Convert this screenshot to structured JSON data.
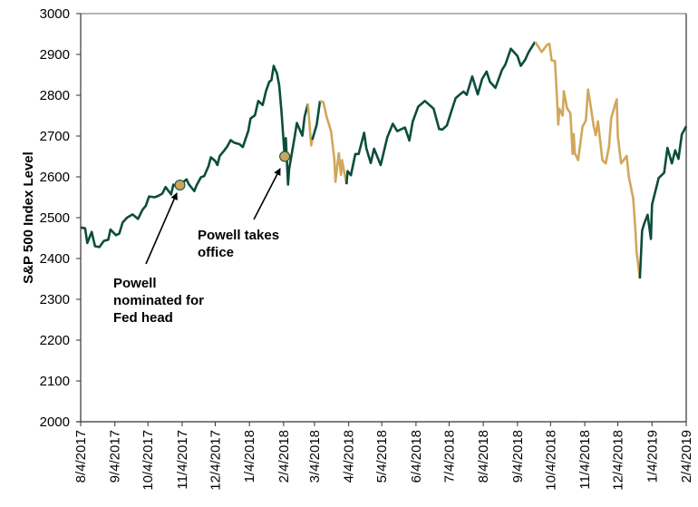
{
  "chart_data": {
    "type": "line",
    "title": "",
    "xlabel": "",
    "ylabel": "S&P 500 Index Level",
    "ylim": [
      2000,
      3000
    ],
    "xlim": [
      "2017-08-04",
      "2019-02-04"
    ],
    "y_ticks": [
      "2000",
      "2100",
      "2200",
      "2300",
      "2400",
      "2500",
      "2600",
      "2700",
      "2800",
      "2900",
      "3000"
    ],
    "x_ticks": [
      {
        "date": "2017-08-04",
        "label": "8/4/2017"
      },
      {
        "date": "2017-09-04",
        "label": "9/4/2017"
      },
      {
        "date": "2017-10-04",
        "label": "10/4/2017"
      },
      {
        "date": "2017-11-04",
        "label": "11/4/2017"
      },
      {
        "date": "2017-12-04",
        "label": "12/4/2017"
      },
      {
        "date": "2018-01-04",
        "label": "1/4/2018"
      },
      {
        "date": "2018-02-04",
        "label": "2/4/2018"
      },
      {
        "date": "2018-03-04",
        "label": "3/4/2018"
      },
      {
        "date": "2018-04-04",
        "label": "4/4/2018"
      },
      {
        "date": "2018-05-04",
        "label": "5/4/2018"
      },
      {
        "date": "2018-06-04",
        "label": "6/4/2018"
      },
      {
        "date": "2018-07-04",
        "label": "7/4/2018"
      },
      {
        "date": "2018-08-04",
        "label": "8/4/2018"
      },
      {
        "date": "2018-09-04",
        "label": "9/4/2018"
      },
      {
        "date": "2018-10-04",
        "label": "10/4/2018"
      },
      {
        "date": "2018-11-04",
        "label": "11/4/2018"
      },
      {
        "date": "2018-12-04",
        "label": "12/4/2018"
      },
      {
        "date": "2019-01-04",
        "label": "1/4/2019"
      },
      {
        "date": "2019-02-04",
        "label": "2/4/2019"
      }
    ],
    "grid": false,
    "colors": {
      "normal": "#0b4d3c",
      "correction": "#d1a75a",
      "marker": "#c9a45c"
    },
    "correction_periods": [
      [
        "2018-02-26",
        "2018-03-02"
      ],
      [
        "2018-03-09",
        "2018-04-02"
      ],
      [
        "2018-09-20",
        "2018-12-24"
      ]
    ],
    "series": [
      {
        "name": "S&P 500",
        "points": [
          [
            "2017-08-04",
            2476
          ],
          [
            "2017-08-08",
            2474
          ],
          [
            "2017-08-10",
            2438
          ],
          [
            "2017-08-14",
            2465
          ],
          [
            "2017-08-17",
            2430
          ],
          [
            "2017-08-21",
            2428
          ],
          [
            "2017-08-25",
            2443
          ],
          [
            "2017-08-29",
            2446
          ],
          [
            "2017-08-31",
            2471
          ],
          [
            "2017-09-05",
            2457
          ],
          [
            "2017-09-08",
            2461
          ],
          [
            "2017-09-11",
            2488
          ],
          [
            "2017-09-15",
            2500
          ],
          [
            "2017-09-20",
            2508
          ],
          [
            "2017-09-25",
            2497
          ],
          [
            "2017-09-29",
            2519
          ],
          [
            "2017-10-02",
            2529
          ],
          [
            "2017-10-05",
            2552
          ],
          [
            "2017-10-10",
            2550
          ],
          [
            "2017-10-13",
            2553
          ],
          [
            "2017-10-17",
            2559
          ],
          [
            "2017-10-20",
            2575
          ],
          [
            "2017-10-25",
            2557
          ],
          [
            "2017-10-27",
            2581
          ],
          [
            "2017-10-31",
            2575
          ],
          [
            "2017-11-02",
            2580
          ],
          [
            "2017-11-08",
            2594
          ],
          [
            "2017-11-10",
            2582
          ],
          [
            "2017-11-15",
            2565
          ],
          [
            "2017-11-17",
            2579
          ],
          [
            "2017-11-21",
            2599
          ],
          [
            "2017-11-24",
            2602
          ],
          [
            "2017-11-28",
            2627
          ],
          [
            "2017-11-30",
            2648
          ],
          [
            "2017-12-04",
            2639
          ],
          [
            "2017-12-06",
            2629
          ],
          [
            "2017-12-08",
            2651
          ],
          [
            "2017-12-12",
            2664
          ],
          [
            "2017-12-15",
            2675
          ],
          [
            "2017-12-18",
            2690
          ],
          [
            "2017-12-21",
            2684
          ],
          [
            "2017-12-26",
            2680
          ],
          [
            "2017-12-29",
            2673
          ],
          [
            "2018-01-03",
            2713
          ],
          [
            "2018-01-05",
            2743
          ],
          [
            "2018-01-09",
            2751
          ],
          [
            "2018-01-12",
            2786
          ],
          [
            "2018-01-16",
            2776
          ],
          [
            "2018-01-19",
            2810
          ],
          [
            "2018-01-22",
            2833
          ],
          [
            "2018-01-24",
            2837
          ],
          [
            "2018-01-26",
            2872
          ],
          [
            "2018-01-29",
            2853
          ],
          [
            "2018-01-31",
            2824
          ],
          [
            "2018-02-02",
            2762
          ],
          [
            "2018-02-05",
            2648
          ],
          [
            "2018-02-06",
            2695
          ],
          [
            "2018-02-08",
            2581
          ],
          [
            "2018-02-09",
            2619
          ],
          [
            "2018-02-14",
            2698
          ],
          [
            "2018-02-16",
            2732
          ],
          [
            "2018-02-21",
            2701
          ],
          [
            "2018-02-23",
            2747
          ],
          [
            "2018-02-26",
            2779
          ],
          [
            "2018-03-01",
            2677
          ],
          [
            "2018-03-02",
            2691
          ],
          [
            "2018-03-06",
            2728
          ],
          [
            "2018-03-09",
            2786
          ],
          [
            "2018-03-12",
            2783
          ],
          [
            "2018-03-15",
            2747
          ],
          [
            "2018-03-19",
            2712
          ],
          [
            "2018-03-22",
            2643
          ],
          [
            "2018-03-23",
            2588
          ],
          [
            "2018-03-26",
            2658
          ],
          [
            "2018-03-28",
            2605
          ],
          [
            "2018-03-29",
            2641
          ],
          [
            "2018-04-02",
            2582
          ],
          [
            "2018-04-03",
            2614
          ],
          [
            "2018-04-06",
            2604
          ],
          [
            "2018-04-10",
            2656
          ],
          [
            "2018-04-13",
            2656
          ],
          [
            "2018-04-18",
            2708
          ],
          [
            "2018-04-20",
            2670
          ],
          [
            "2018-04-24",
            2634
          ],
          [
            "2018-04-27",
            2669
          ],
          [
            "2018-05-03",
            2629
          ],
          [
            "2018-05-09",
            2697
          ],
          [
            "2018-05-14",
            2730
          ],
          [
            "2018-05-18",
            2712
          ],
          [
            "2018-05-25",
            2721
          ],
          [
            "2018-05-29",
            2689
          ],
          [
            "2018-06-01",
            2735
          ],
          [
            "2018-06-06",
            2772
          ],
          [
            "2018-06-12",
            2786
          ],
          [
            "2018-06-15",
            2779
          ],
          [
            "2018-06-20",
            2767
          ],
          [
            "2018-06-25",
            2717
          ],
          [
            "2018-06-28",
            2716
          ],
          [
            "2018-07-02",
            2726
          ],
          [
            "2018-07-06",
            2760
          ],
          [
            "2018-07-10",
            2793
          ],
          [
            "2018-07-17",
            2809
          ],
          [
            "2018-07-20",
            2801
          ],
          [
            "2018-07-25",
            2846
          ],
          [
            "2018-07-30",
            2802
          ],
          [
            "2018-08-03",
            2840
          ],
          [
            "2018-08-07",
            2858
          ],
          [
            "2018-08-10",
            2833
          ],
          [
            "2018-08-15",
            2818
          ],
          [
            "2018-08-21",
            2862
          ],
          [
            "2018-08-24",
            2875
          ],
          [
            "2018-08-29",
            2914
          ],
          [
            "2018-09-04",
            2896
          ],
          [
            "2018-09-07",
            2872
          ],
          [
            "2018-09-11",
            2887
          ],
          [
            "2018-09-14",
            2905
          ],
          [
            "2018-09-20",
            2931
          ],
          [
            "2018-09-26",
            2906
          ],
          [
            "2018-10-01",
            2924
          ],
          [
            "2018-10-03",
            2926
          ],
          [
            "2018-10-05",
            2885
          ],
          [
            "2018-10-08",
            2884
          ],
          [
            "2018-10-10",
            2785
          ],
          [
            "2018-10-11",
            2728
          ],
          [
            "2018-10-12",
            2767
          ],
          [
            "2018-10-15",
            2750
          ],
          [
            "2018-10-16",
            2810
          ],
          [
            "2018-10-19",
            2768
          ],
          [
            "2018-10-22",
            2756
          ],
          [
            "2018-10-24",
            2656
          ],
          [
            "2018-10-25",
            2705
          ],
          [
            "2018-10-26",
            2658
          ],
          [
            "2018-10-29",
            2641
          ],
          [
            "2018-11-02",
            2723
          ],
          [
            "2018-11-05",
            2738
          ],
          [
            "2018-11-07",
            2814
          ],
          [
            "2018-11-09",
            2781
          ],
          [
            "2018-11-12",
            2726
          ],
          [
            "2018-11-14",
            2702
          ],
          [
            "2018-11-16",
            2736
          ],
          [
            "2018-11-20",
            2641
          ],
          [
            "2018-11-23",
            2633
          ],
          [
            "2018-11-26",
            2674
          ],
          [
            "2018-11-28",
            2744
          ],
          [
            "2018-12-03",
            2790
          ],
          [
            "2018-12-04",
            2700
          ],
          [
            "2018-12-07",
            2633
          ],
          [
            "2018-12-12",
            2651
          ],
          [
            "2018-12-14",
            2600
          ],
          [
            "2018-12-18",
            2546
          ],
          [
            "2018-12-20",
            2467
          ],
          [
            "2018-12-21",
            2416
          ],
          [
            "2018-12-24",
            2351
          ],
          [
            "2018-12-26",
            2468
          ],
          [
            "2018-12-28",
            2486
          ],
          [
            "2018-12-31",
            2507
          ],
          [
            "2019-01-03",
            2448
          ],
          [
            "2019-01-04",
            2532
          ],
          [
            "2019-01-08",
            2575
          ],
          [
            "2019-01-10",
            2597
          ],
          [
            "2019-01-15",
            2610
          ],
          [
            "2019-01-18",
            2671
          ],
          [
            "2019-01-22",
            2633
          ],
          [
            "2019-01-25",
            2665
          ],
          [
            "2019-01-28",
            2644
          ],
          [
            "2019-01-31",
            2704
          ],
          [
            "2019-02-04",
            2724
          ]
        ]
      }
    ],
    "annotations": [
      {
        "date": "2017-11-02",
        "value": 2580,
        "text_lines": [
          "Powell",
          "nominated for",
          "Fed head"
        ]
      },
      {
        "date": "2018-02-05",
        "value": 2650,
        "text_lines": [
          "Powell takes",
          "office"
        ]
      }
    ]
  }
}
